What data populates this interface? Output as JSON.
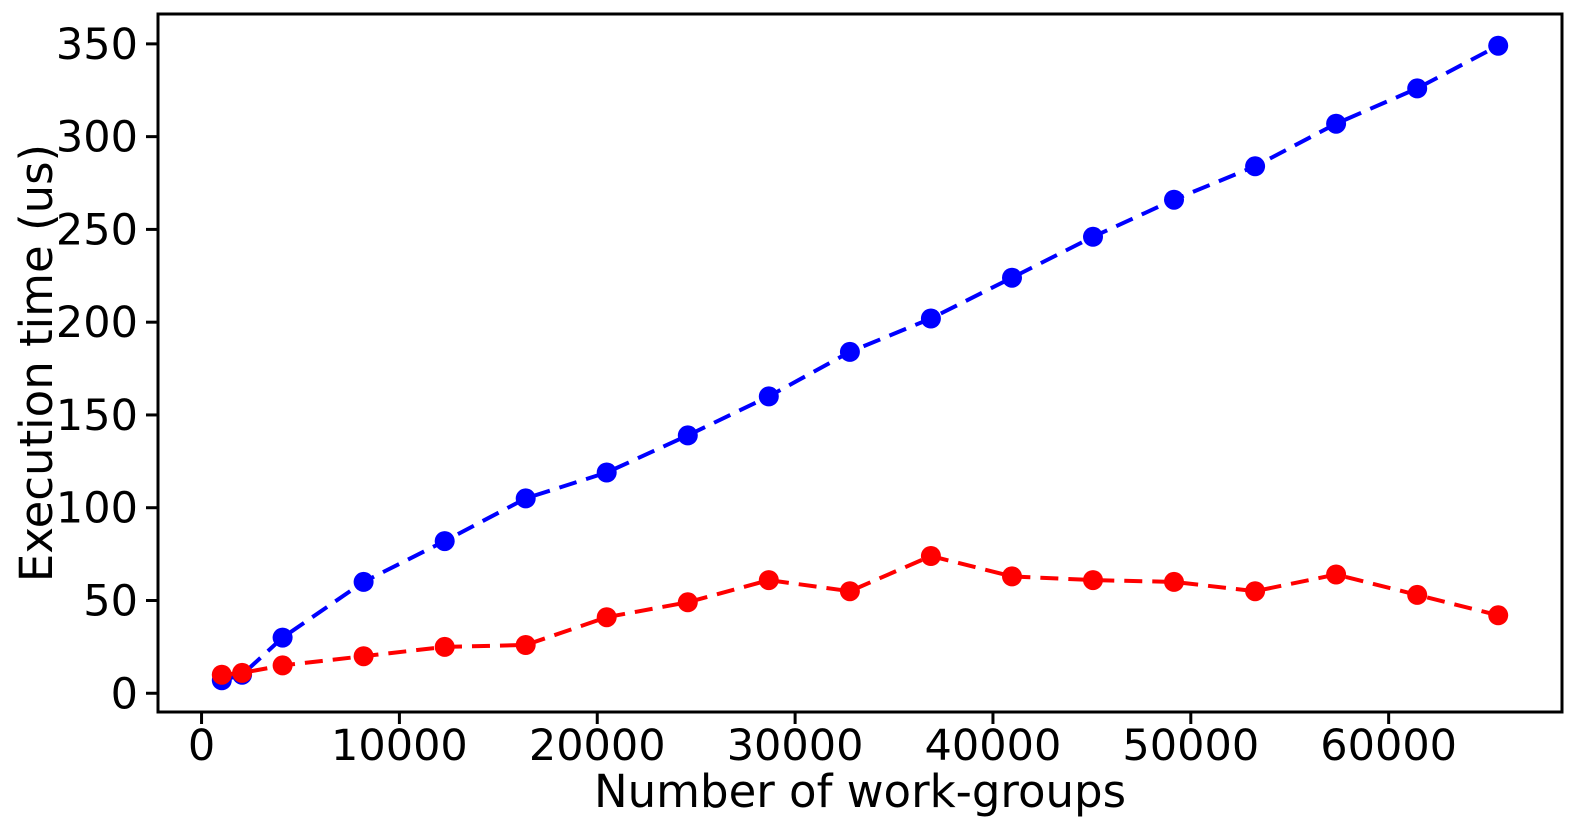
{
  "figure": {
    "background": "#ffffff",
    "spine_color": "#000000",
    "tick_color": "#000000"
  },
  "chart_data": {
    "type": "line",
    "title": "",
    "xlabel": "Number of work-groups",
    "ylabel": "Execution time (us)",
    "x": [
      1024,
      2048,
      4096,
      8192,
      12288,
      16384,
      20480,
      24576,
      28672,
      32768,
      36864,
      40960,
      45056,
      49152,
      53248,
      57344,
      61440,
      65536
    ],
    "series": [
      {
        "name": "blue",
        "color": "#0000ff",
        "linestyle": "dashed",
        "marker": "circle",
        "values": [
          7,
          10,
          30,
          60,
          82,
          105,
          119,
          139,
          160,
          184,
          202,
          224,
          246,
          266,
          284,
          307,
          326,
          349
        ]
      },
      {
        "name": "red",
        "color": "#ff0000",
        "linestyle": "dashed",
        "marker": "circle",
        "values": [
          10,
          11,
          15,
          20,
          25,
          26,
          41,
          49,
          61,
          55,
          74,
          63,
          61,
          60,
          55,
          64,
          53,
          42
        ]
      }
    ],
    "xticks": {
      "values": [
        0,
        10000,
        20000,
        30000,
        40000,
        50000,
        60000
      ],
      "labels": [
        "0",
        "10000",
        "20000",
        "30000",
        "40000",
        "50000",
        "60000"
      ]
    },
    "yticks": {
      "values": [
        0,
        50,
        100,
        150,
        200,
        250,
        300,
        350
      ],
      "labels": [
        "0",
        "50",
        "100",
        "150",
        "200",
        "250",
        "300",
        "350"
      ]
    },
    "xlim": [
      -2201,
      68761
    ],
    "ylim": [
      -10.1,
      366.1
    ],
    "grid": false,
    "legend_position": "none"
  }
}
